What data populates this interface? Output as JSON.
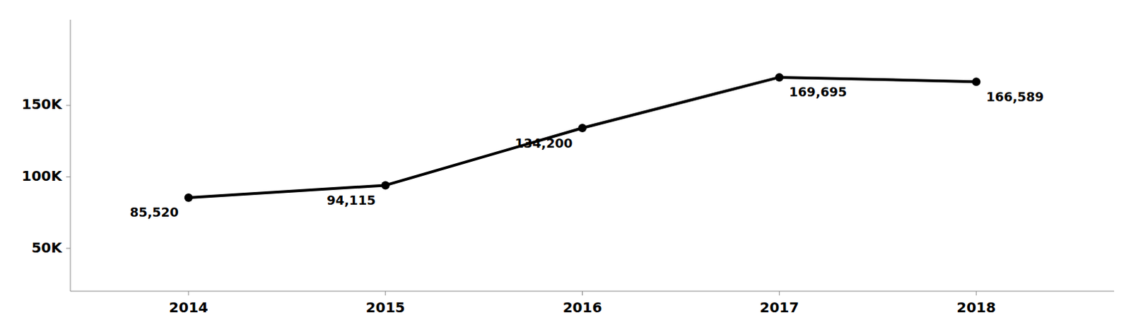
{
  "chart_data": {
    "type": "line",
    "x": [
      2014,
      2015,
      2016,
      2017,
      2018
    ],
    "values": [
      85520,
      94115,
      134200,
      169695,
      166589
    ],
    "value_labels": [
      "85,520",
      "94,115",
      "134,200",
      "169,695",
      "166,589"
    ],
    "data_labels": true,
    "color": "#000000",
    "marker": "circle",
    "xlim": [
      2013.4,
      2018.7
    ],
    "xticks": [
      2014,
      2015,
      2016,
      2017,
      2018
    ],
    "ylim": [
      20000,
      210000
    ],
    "yticks": [
      {
        "value": 50000,
        "label": "50K"
      },
      {
        "value": 100000,
        "label": "100K"
      },
      {
        "value": 150000,
        "label": "150K"
      }
    ],
    "grid": false
  }
}
